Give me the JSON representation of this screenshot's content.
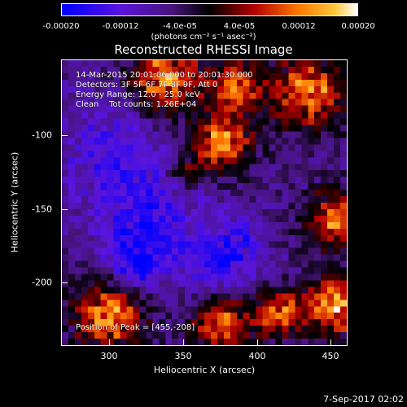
{
  "colorbar": {
    "ticks": [
      "-0.00020",
      "-0.00012",
      "-4.0e-05",
      "4.0e-05",
      "0.00012",
      "0.00020"
    ],
    "units": "(photons cm⁻² s⁻¹ asec⁻²)",
    "colors": [
      "#0000ff",
      "#6600cc",
      "#330066",
      "#000000",
      "#cc0000",
      "#ff9900",
      "#ffffff"
    ]
  },
  "title": "Reconstructed RHESSI Image",
  "info": {
    "time": "14-Mar-2015 20:01:06.000 to 20:01:30.000",
    "detectors": "Detectors: 3F 5F 6F 7F 8F 9F, Att 0",
    "energy": "Energy Range: 12.0 - 25.0 keV",
    "clean": "Clean    Tot counts: 1.26E+04",
    "peak": "Position of Peak = [455,-208]"
  },
  "axes": {
    "xlabel": "Heliocentric X (arcsec)",
    "ylabel": "Heliocentric Y (arcsec)",
    "xticks": [
      "300",
      "350",
      "400",
      "450"
    ],
    "yticks": [
      "-100",
      "-150",
      "-200"
    ]
  },
  "footer": {
    "date": "7-Sep-2017 02:02"
  },
  "chart_data": {
    "type": "heatmap",
    "title": "Reconstructed RHESSI Image",
    "xlabel": "Heliocentric X (arcsec)",
    "ylabel": "Heliocentric Y (arcsec)",
    "xlim": [
      268,
      460
    ],
    "ylim": [
      -244,
      -52
    ],
    "colorbar_range": [
      -0.0002,
      0.0002
    ],
    "peak": [
      455,
      -208
    ]
  }
}
